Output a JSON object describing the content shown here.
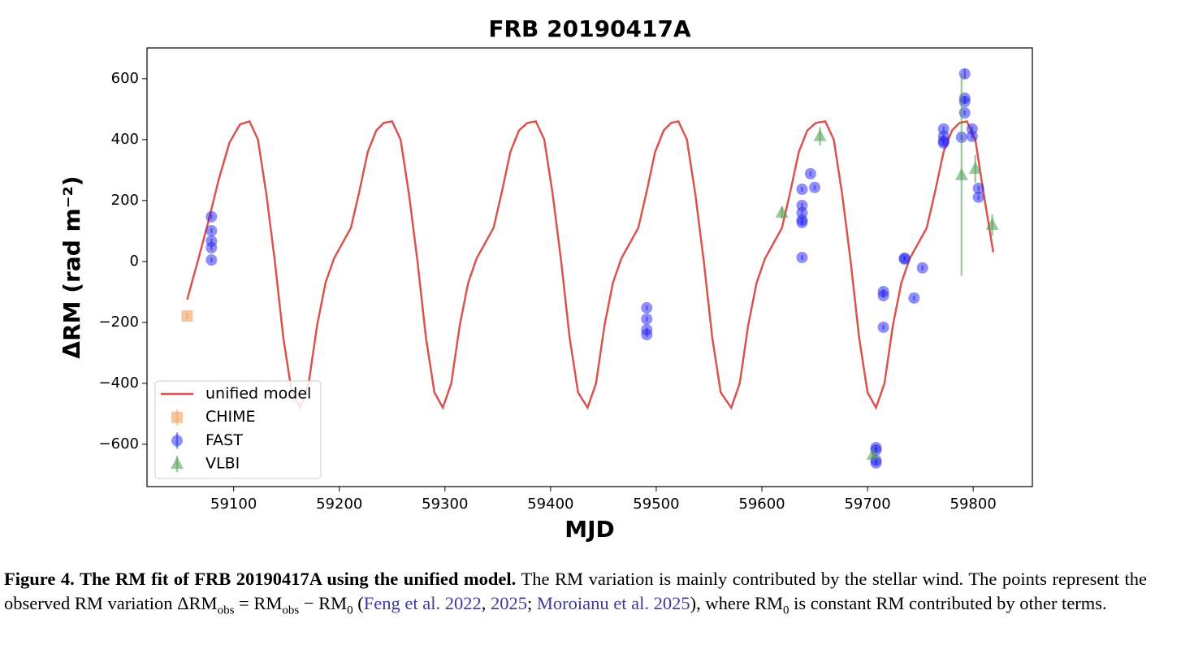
{
  "chart_data": {
    "type": "scatter",
    "title": "FRB 20190417A",
    "x_label": "MJD",
    "y_label": "ΔRM (rad m⁻²)",
    "xlim": [
      59018,
      59856
    ],
    "ylim": [
      -739,
      701
    ],
    "xticks": [
      59100,
      59200,
      59300,
      59400,
      59500,
      59600,
      59700,
      59800
    ],
    "yticks": [
      {
        "value": -600,
        "label": "−600"
      },
      {
        "value": -400,
        "label": "−400"
      },
      {
        "value": -200,
        "label": "−200"
      },
      0,
      200,
      400,
      600
    ],
    "legend": "lower left",
    "series": [
      {
        "name": "unified model",
        "type": "line",
        "color": "#d9534f",
        "x": [
          59056,
          59066,
          59076,
          59086,
          59096,
          59106,
          59115,
          59123,
          59131,
          59139,
          59147,
          59155,
          59163,
          59171,
          59179,
          59187,
          59195,
          59203,
          59211,
          59219,
          59227,
          59235,
          59242,
          59250,
          59258,
          59266,
          59274,
          59282,
          59290,
          59298,
          59306,
          59314,
          59322,
          59330,
          59338,
          59346,
          59354,
          59362,
          59370,
          59378,
          59386,
          59394,
          59402,
          59410,
          59418,
          59426,
          59435,
          59443,
          59451,
          59459,
          59467,
          59475,
          59483,
          59491,
          59499,
          59507,
          59514,
          59521,
          59529,
          59537,
          59545,
          59553,
          59561,
          59571,
          59579,
          59587,
          59595,
          59603,
          59611,
          59619,
          59627,
          59635,
          59643,
          59651,
          59660,
          59668,
          59676,
          59684,
          59692,
          59700,
          59708,
          59716,
          59724,
          59732,
          59740,
          59748,
          59756,
          59764,
          59772,
          59780,
          59787,
          59794,
          59802,
          59810,
          59819
        ],
        "values": [
          -125,
          0,
          130,
          270,
          390,
          450,
          460,
          400,
          220,
          0,
          -250,
          -430,
          -480,
          -400,
          -210,
          -70,
          10,
          60,
          110,
          230,
          360,
          430,
          455,
          460,
          400,
          220,
          0,
          -250,
          -430,
          -480,
          -400,
          -210,
          -70,
          10,
          60,
          110,
          230,
          360,
          430,
          455,
          460,
          400,
          220,
          0,
          -250,
          -430,
          -480,
          -400,
          -210,
          -70,
          10,
          60,
          110,
          230,
          360,
          430,
          455,
          460,
          400,
          220,
          0,
          -250,
          -430,
          -480,
          -400,
          -210,
          -70,
          10,
          60,
          110,
          230,
          360,
          430,
          455,
          460,
          400,
          220,
          0,
          -250,
          -430,
          -480,
          -400,
          -210,
          -70,
          10,
          60,
          110,
          230,
          360,
          430,
          455,
          460,
          400,
          220,
          30
        ]
      },
      {
        "name": "CHIME",
        "type": "scatter",
        "marker": "square",
        "color": "#f0a05a",
        "x": [
          59056
        ],
        "values": [
          -179
        ],
        "errors": [
          10
        ]
      },
      {
        "name": "FAST",
        "type": "scatter",
        "marker": "circle",
        "color": "#1f1ff0",
        "x": [
          59079,
          59079,
          59079,
          59079,
          59079,
          59491,
          59491,
          59491,
          59491,
          59638,
          59638,
          59638,
          59638,
          59638,
          59638,
          59646,
          59650,
          59708,
          59708,
          59708,
          59708,
          59715,
          59715,
          59715,
          59735,
          59735,
          59744,
          59752,
          59772,
          59772,
          59772,
          59772,
          59789,
          59792,
          59792,
          59792,
          59792,
          59799,
          59799,
          59805,
          59805
        ],
        "values": [
          147,
          101,
          67,
          45,
          5,
          -152,
          -189,
          -224,
          -240,
          237,
          184,
          160,
          136,
          128,
          13,
          288,
          243,
          -611,
          -619,
          -653,
          -661,
          -99,
          -112,
          -216,
          11,
          8,
          -120,
          -21,
          435,
          411,
          395,
          389,
          408,
          616,
          536,
          525,
          488,
          435,
          411,
          240,
          211
        ],
        "errors": [
          8,
          8,
          8,
          8,
          8,
          8,
          8,
          8,
          8,
          8,
          8,
          8,
          8,
          8,
          8,
          8,
          8,
          8,
          8,
          8,
          8,
          8,
          8,
          8,
          8,
          8,
          8,
          8,
          8,
          8,
          8,
          8,
          8,
          15,
          8,
          8,
          8,
          8,
          8,
          8,
          8
        ]
      },
      {
        "name": "VLBI",
        "type": "scatter",
        "marker": "triangle",
        "color": "#4c9a4c",
        "x": [
          59619,
          59655,
          59705,
          59789,
          59802,
          59818
        ],
        "values": [
          160,
          411,
          -635,
          283,
          304,
          120
        ],
        "errors": [
          20,
          30,
          15,
          330,
          45,
          35
        ]
      }
    ]
  },
  "caption": [
    "Figure 4. The RM fit of FRB 20190417A using the unified model.",
    " The RM variation is mainly contributed by the stellar wind. The points represent the observed RM variation ΔRM",
    "obs",
    " = RM",
    "obs",
    " − RM",
    "0",
    " (",
    "Feng et al. 2022",
    ", ",
    "2025",
    "; ",
    "Moroianu et al. 2025",
    "), where RM",
    "0",
    " is constant RM contributed by other terms."
  ]
}
